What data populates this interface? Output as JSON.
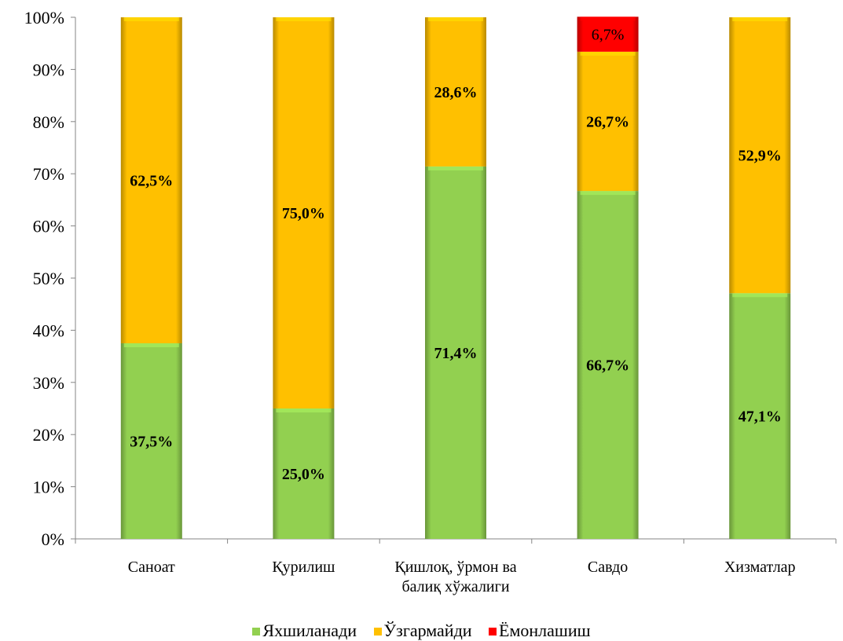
{
  "chart_data": {
    "type": "bar",
    "stacked": true,
    "percent": true,
    "categories": [
      "Саноат",
      "Қурилиш",
      "Қишлоқ, ўрмон ва балиқ хўжалиги",
      "Савдо",
      "Хизматлар"
    ],
    "category_lines": [
      [
        "Саноат"
      ],
      [
        "Қурилиш"
      ],
      [
        "Қишлоқ, ўрмон ва",
        "балиқ хўжалиги"
      ],
      [
        "Савдо"
      ],
      [
        "Хизматлар"
      ]
    ],
    "series": [
      {
        "name": "Яхшиланади",
        "color": "#92d050",
        "values": [
          37.5,
          25.0,
          71.4,
          66.7,
          47.1
        ],
        "labels": [
          "37,5%",
          "25,0%",
          "71,4%",
          "66,7%",
          "47,1%"
        ]
      },
      {
        "name": "Ўзгармайди",
        "color": "#ffc000",
        "values": [
          62.5,
          75.0,
          28.6,
          26.7,
          52.9
        ],
        "labels": [
          "62,5%",
          "75,0%",
          "28,6%",
          "26,7%",
          "52,9%"
        ]
      },
      {
        "name": "Ёмонлашиш",
        "color": "#ff0000",
        "values": [
          0,
          0,
          0,
          6.7,
          0
        ],
        "labels": [
          "",
          "",
          "",
          "6,7%",
          ""
        ]
      }
    ],
    "ylim": [
      0,
      100
    ],
    "yticks": [
      "0%",
      "10%",
      "20%",
      "30%",
      "40%",
      "50%",
      "60%",
      "70%",
      "80%",
      "90%",
      "100%"
    ],
    "grid": false,
    "legend_position": "bottom"
  },
  "legend": [
    {
      "label": "Яхшиланади",
      "color": "#92d050"
    },
    {
      "label": "Ўзгармайди",
      "color": "#ffc000"
    },
    {
      "label": "Ёмонлашиш",
      "color": "#ff0000"
    }
  ]
}
